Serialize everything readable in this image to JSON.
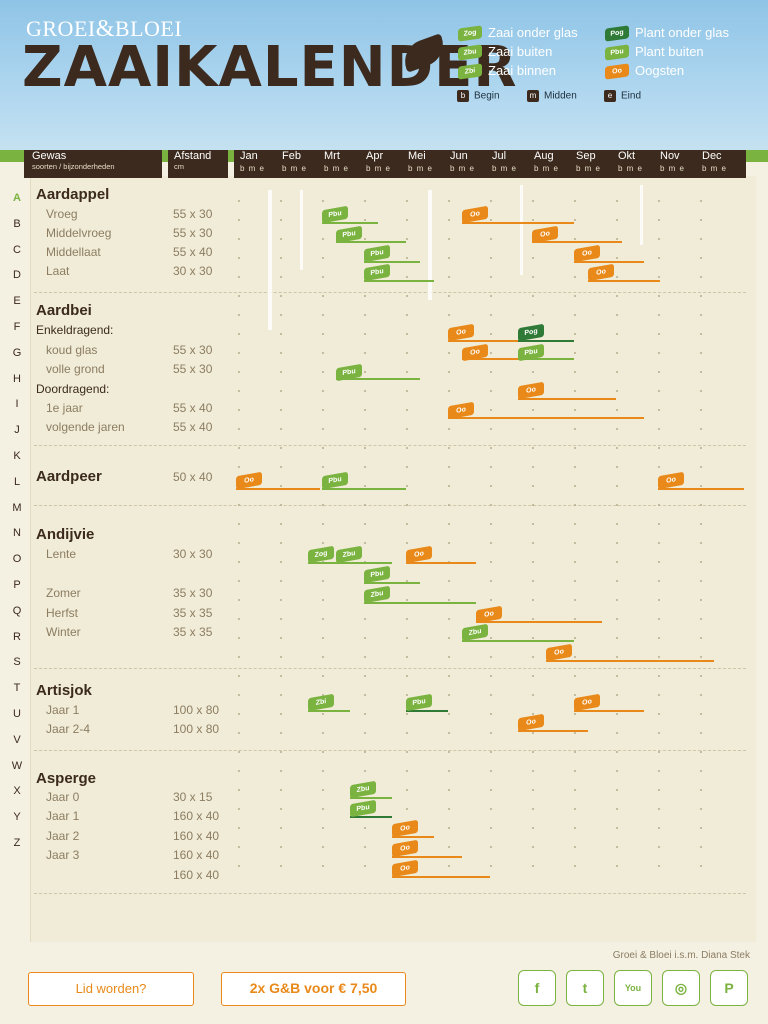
{
  "brand": {
    "groei": "GROEI",
    "amp": "&",
    "bloei": "BLOEI"
  },
  "title": "ZAAIKALENDER",
  "legend": {
    "zog": {
      "code": "Zog",
      "label": "Zaai onder glas"
    },
    "zbu": {
      "code": "Zbu",
      "label": "Zaai buiten"
    },
    "zbi": {
      "code": "Zbi",
      "label": "Zaai binnen"
    },
    "pog": {
      "code": "Pog",
      "label": "Plant onder glas"
    },
    "pbu": {
      "code": "Pbu",
      "label": "Plant buiten"
    },
    "oo": {
      "code": "Oo",
      "label": "Oogsten"
    },
    "begin": {
      "code": "b",
      "label": "Begin"
    },
    "midden": {
      "code": "m",
      "label": "Midden"
    },
    "eind": {
      "code": "e",
      "label": "Eind"
    }
  },
  "header": {
    "gewas": "Gewas",
    "gewas_sub": "soorten / bijzonderheden",
    "afstand": "Afstand",
    "afstand_unit": "cm",
    "bme": "b m e",
    "months": [
      "Jan",
      "Feb",
      "Mrt",
      "Apr",
      "Mei",
      "Jun",
      "Jul",
      "Aug",
      "Sep",
      "Okt",
      "Nov",
      "Dec"
    ]
  },
  "alphabet": [
    "A",
    "B",
    "C",
    "D",
    "E",
    "F",
    "G",
    "H",
    "I",
    "J",
    "K",
    "L",
    "M",
    "N",
    "O",
    "P",
    "Q",
    "R",
    "S",
    "T",
    "U",
    "V",
    "W",
    "X",
    "Y",
    "Z"
  ],
  "rows": [
    {
      "type": "crop",
      "text": "Aardappel"
    },
    {
      "type": "var",
      "text": "Vroeg",
      "afstand": "55 x 30"
    },
    {
      "type": "var",
      "text": "Middelvroeg",
      "afstand": "55 x 30"
    },
    {
      "type": "var",
      "text": "Middellaat",
      "afstand": "55 x 40"
    },
    {
      "type": "var",
      "text": "Laat",
      "afstand": "30 x 30"
    },
    {
      "type": "crop",
      "text": "Aardbei"
    },
    {
      "type": "sub",
      "text": "Enkeldragend:"
    },
    {
      "type": "var",
      "text": "koud glas",
      "afstand": "55 x 30"
    },
    {
      "type": "var",
      "text": "volle grond",
      "afstand": "55 x 30"
    },
    {
      "type": "sub",
      "text": "Doordragend:"
    },
    {
      "type": "var",
      "text": "1e jaar",
      "afstand": "55 x 40"
    },
    {
      "type": "var",
      "text": "volgende jaren",
      "afstand": "55 x 40"
    },
    {
      "type": "crop",
      "text": "Aardpeer",
      "afstand": "50 x 40"
    },
    {
      "type": "crop",
      "text": "Andijvie"
    },
    {
      "type": "var",
      "text": "Lente",
      "afstand": "30 x 30"
    },
    {
      "type": "var",
      "text": "Zomer",
      "afstand": "35 x 30"
    },
    {
      "type": "var",
      "text": "Herfst",
      "afstand": "35 x 35"
    },
    {
      "type": "var",
      "text": "Winter",
      "afstand": "35 x 35"
    },
    {
      "type": "crop",
      "text": "Artisjok"
    },
    {
      "type": "var",
      "text": "Jaar 1",
      "afstand": "100 x 80"
    },
    {
      "type": "var",
      "text": "Jaar 2-4",
      "afstand": "100 x 80"
    },
    {
      "type": "crop",
      "text": "Asperge"
    },
    {
      "type": "var",
      "text": "Jaar 0",
      "afstand": "30 x 15"
    },
    {
      "type": "var",
      "text": "Jaar 1",
      "afstand": "160 x 40"
    },
    {
      "type": "var",
      "text": "Jaar 2",
      "afstand": "160 x 40"
    },
    {
      "type": "var",
      "text": "Jaar 3",
      "afstand": "160 x 40"
    },
    {
      "type": "var",
      "text": "",
      "afstand": "160 x 40"
    }
  ],
  "credit": "Groei & Bloei i.s.m. Diana Stek",
  "buttons": {
    "lid": "Lid worden?",
    "promo": "2x G&B voor € 7,50"
  },
  "social": [
    "facebook",
    "twitter",
    "youtube",
    "instagram",
    "pinterest"
  ],
  "social_glyphs": {
    "facebook": "f",
    "twitter": "t",
    "youtube": "You",
    "instagram": "◎",
    "pinterest": "P"
  },
  "colors": {
    "sky": "#8fc4e6",
    "brown": "#3b2a1d",
    "green": "#7bb341",
    "dark_green": "#2f7a36",
    "orange": "#e8891a",
    "paper": "#f1ecd7"
  }
}
